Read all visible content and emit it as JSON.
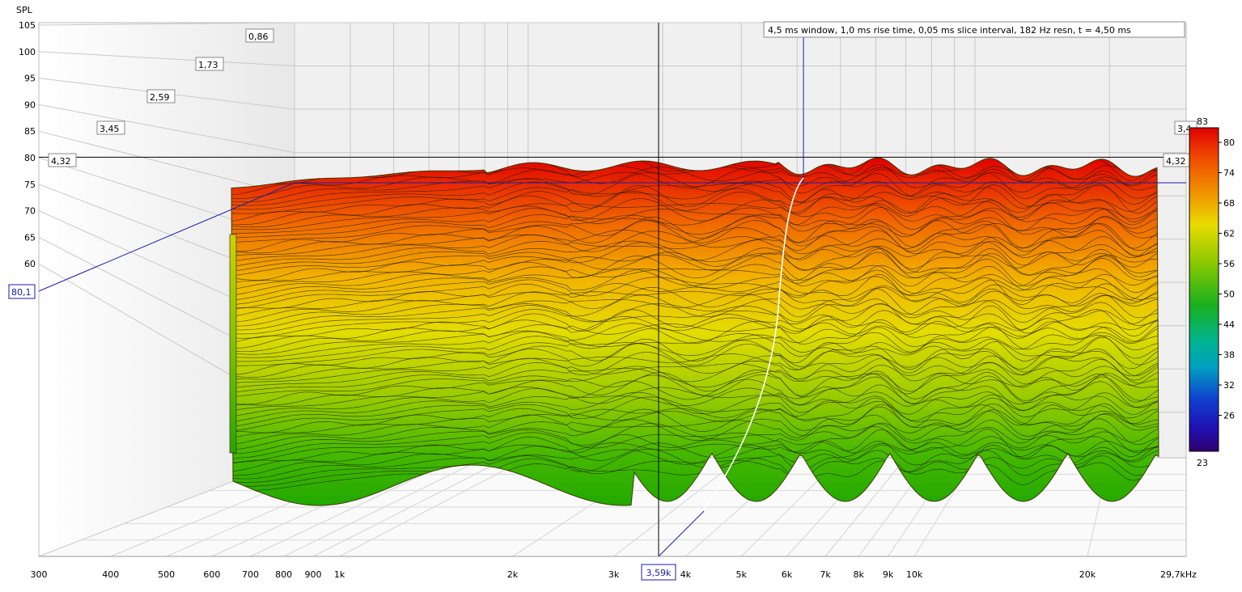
{
  "chart_data": {
    "type": "waterfall-3d",
    "ylabel": "SPL",
    "x_unit_label": "29,7kHz",
    "x_scale": "log",
    "xlim": [
      300,
      29700
    ],
    "ylim": [
      55,
      105
    ],
    "y_ticks": [
      "105",
      "100",
      "95",
      "90",
      "85",
      "80",
      "75",
      "70",
      "65",
      "60"
    ],
    "x_ticks": [
      {
        "f": 300,
        "label": "300"
      },
      {
        "f": 400,
        "label": "400"
      },
      {
        "f": 500,
        "label": "500"
      },
      {
        "f": 600,
        "label": "600"
      },
      {
        "f": 700,
        "label": "700"
      },
      {
        "f": 800,
        "label": "800"
      },
      {
        "f": 900,
        "label": "900"
      },
      {
        "f": 1000,
        "label": "1k"
      },
      {
        "f": 2000,
        "label": "2k"
      },
      {
        "f": 3000,
        "label": "3k"
      },
      {
        "f": 4000,
        "label": "4k"
      },
      {
        "f": 5000,
        "label": "5k"
      },
      {
        "f": 6000,
        "label": "6k"
      },
      {
        "f": 7000,
        "label": "7k"
      },
      {
        "f": 8000,
        "label": "8k"
      },
      {
        "f": 9000,
        "label": "9k"
      },
      {
        "f": 10000,
        "label": "10k"
      },
      {
        "f": 20000,
        "label": "20k"
      }
    ],
    "time_unit": "ms",
    "time_ticks_left": [
      "0,86",
      "1,73",
      "2,59",
      "3,45",
      "4,32"
    ],
    "time_ticks_right": [
      "3,4",
      "4,32"
    ],
    "info_text": "4,5 ms window, 1,0 ms rise time, 0,05 ms slice interval, 182 Hz resn, t = 4,50 ms",
    "cursor": {
      "freq_label": "3,59k",
      "spl_label": "80,1",
      "freq": 3590,
      "spl": 80.1
    },
    "colorbar": {
      "max_label": "83",
      "min_label": "23",
      "ticks": [
        "80",
        "74",
        "68",
        "62",
        "56",
        "50",
        "44",
        "38",
        "32",
        "26"
      ]
    },
    "colors": {
      "high": "#e00000",
      "upper": "#f07800",
      "mid": "#e4dc00",
      "low": "#3cb400",
      "cool": "#00b4a0",
      "cold": "#1040d0",
      "min": "#300070"
    },
    "grid": true
  }
}
